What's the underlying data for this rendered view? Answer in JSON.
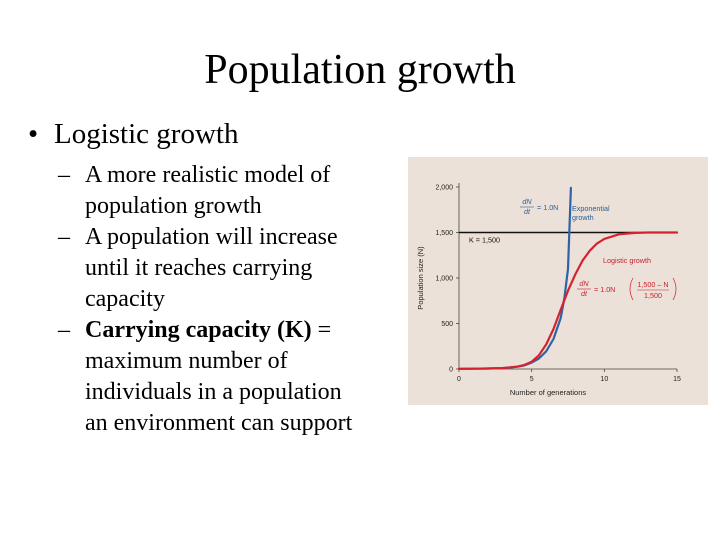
{
  "slide": {
    "title": "Population growth",
    "bullet": "Logistic growth",
    "sub_bullets": [
      "A more realistic model of\npopulation growth",
      "A population will increase\nuntil it reaches carrying\ncapacity"
    ],
    "bold_term": "Carrying capacity (K)",
    "bold_rest": " =\nmaximum number of\nindividuals in a population\nan environment can support"
  },
  "chart_data": {
    "type": "line",
    "xlabel": "Number of generations",
    "ylabel": "Population size (N)",
    "xlim": [
      0,
      15
    ],
    "ylim": [
      0,
      2000
    ],
    "xticks": [
      "0",
      "5",
      "10",
      "15"
    ],
    "yticks": [
      "0",
      "500",
      "1,000",
      "1,500",
      "2,000"
    ],
    "x_tick_values": [
      0,
      5,
      10,
      15
    ],
    "y_tick_values": [
      0,
      500,
      1000,
      1500,
      2000
    ],
    "carrying_capacity": {
      "label": "K = 1,500",
      "value": 1500
    },
    "series": [
      {
        "name": "Exponential growth",
        "color": "#2f63a8",
        "x": [
          0,
          1,
          2,
          3,
          3.5,
          4,
          4.5,
          5,
          5.5,
          6,
          6.5,
          7,
          7.25,
          7.5,
          7.7
        ],
        "y": [
          2,
          3,
          5,
          10,
          16,
          25,
          40,
          70,
          115,
          195,
          330,
          560,
          780,
          1100,
          1990
        ]
      },
      {
        "name": "Logistic growth",
        "color": "#d4222f",
        "x": [
          0,
          1,
          2,
          3,
          4,
          4.5,
          5,
          5.5,
          6,
          6.5,
          7,
          7.5,
          8,
          8.5,
          9,
          9.5,
          10,
          11,
          12,
          13,
          14,
          15
        ],
        "y": [
          2,
          3,
          5,
          10,
          25,
          45,
          80,
          150,
          270,
          440,
          650,
          860,
          1040,
          1190,
          1300,
          1380,
          1430,
          1480,
          1495,
          1500,
          1500,
          1500
        ]
      }
    ],
    "annotations": {
      "exp_eq_num": "dN",
      "exp_eq_den": "dt",
      "exp_eq_rhs": "= 1.0N",
      "exp_label_1": "Exponential",
      "exp_label_2": "growth",
      "log_label": "Logistic growth",
      "log_eq_num": "dN",
      "log_eq_den": "dt",
      "log_eq_rhs": "= 1.0N",
      "log_frac_num": "1,500 – N",
      "log_frac_den": "1,500"
    }
  }
}
